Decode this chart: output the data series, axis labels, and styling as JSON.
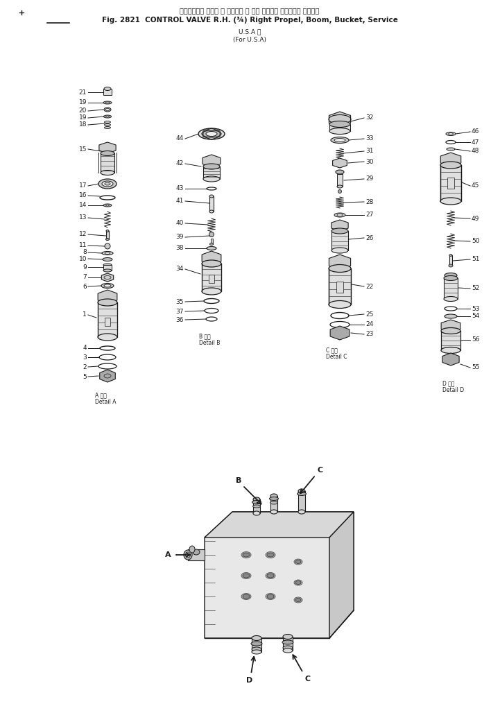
{
  "title_jp": "コントロール バルブ 右 　　　右 走 行， ブーム， バケット， サービス",
  "title_en": "Fig. 2821  CONTROL VALVE R.H. (¾) Right Propel, Boom, Bucket, Service",
  "title_sub1": "U.S.A 向",
  "title_sub2": "(For U.S.A)",
  "bg_color": "#ffffff",
  "lc": "#1a1a1a",
  "detail_a": "A 詳細\nDetail A",
  "detail_b": "B 詳細\nDetail B",
  "detail_c": "C 詳細\nDetail C",
  "detail_d": "D 詳細\nDetail D"
}
